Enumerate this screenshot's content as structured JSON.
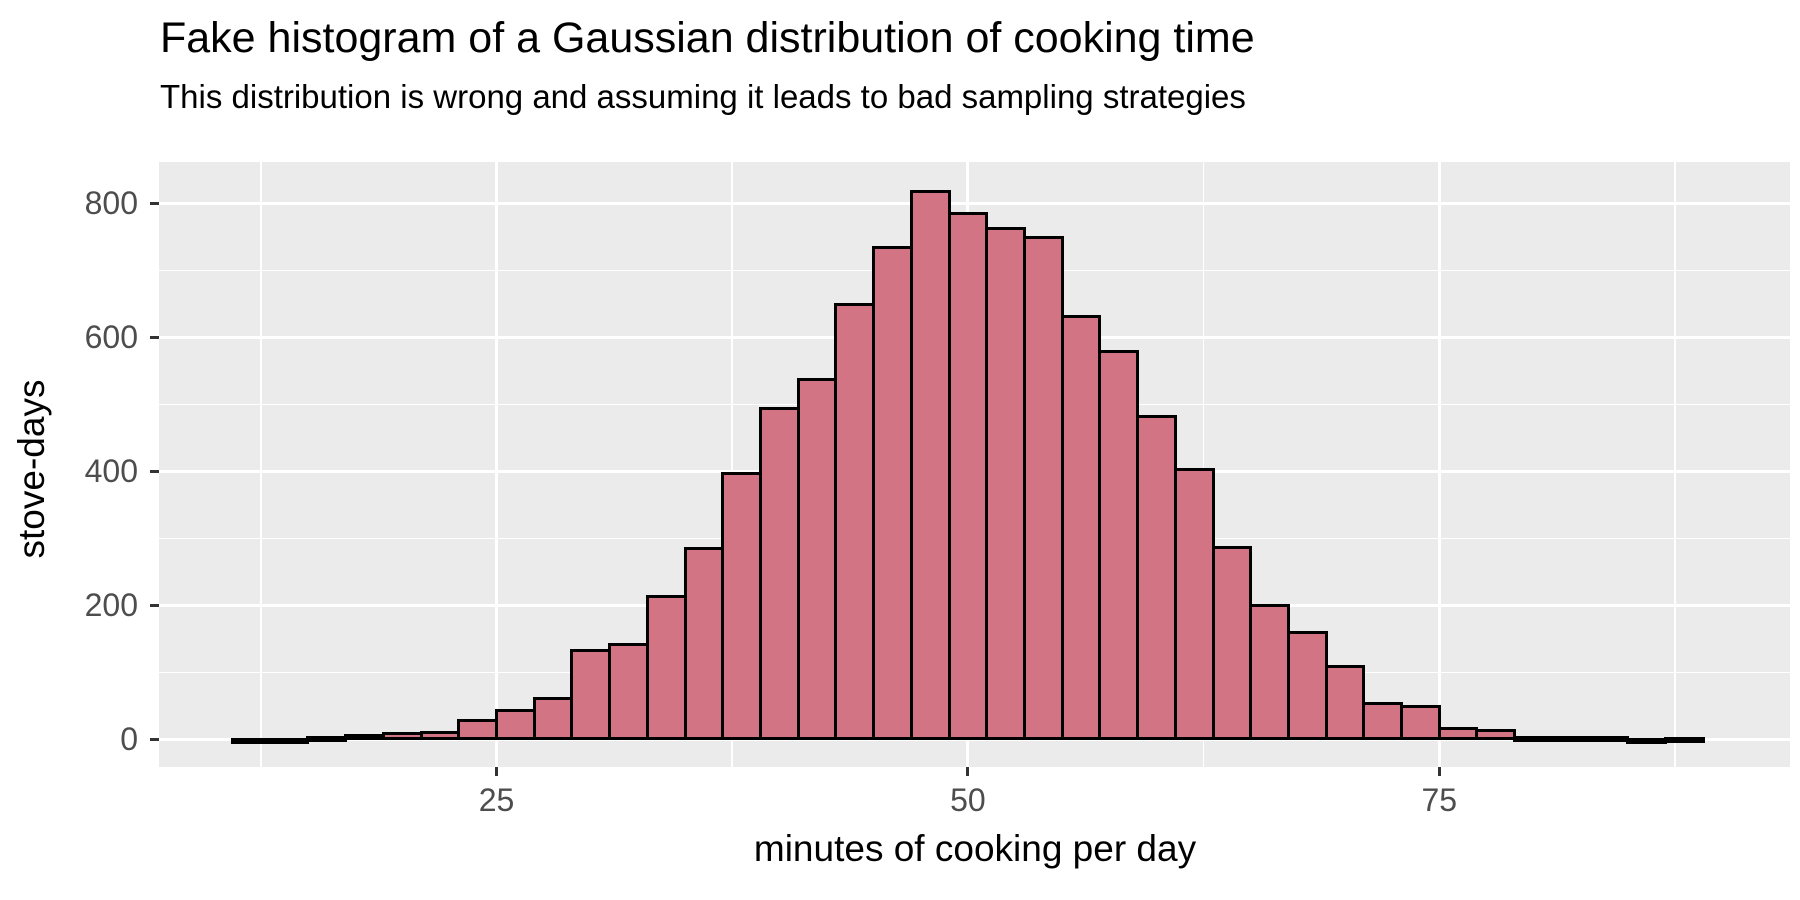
{
  "chart_data": {
    "type": "bar",
    "subtype": "histogram",
    "title": "Fake histogram of a Gaussian distribution of cooking time",
    "subtitle": "This distribution is wrong and assuming it leads to bad sampling strategies",
    "xlabel": "minutes of cooking per day",
    "ylabel": "stove-days",
    "bin_start": 11,
    "bin_width": 2,
    "bin_centers": [
      12,
      14,
      16,
      18,
      20,
      22,
      24,
      26,
      28,
      30,
      32,
      34,
      36,
      38,
      40,
      42,
      44,
      46,
      48,
      50,
      52,
      54,
      56,
      58,
      60,
      62,
      64,
      66,
      68,
      70,
      72,
      74,
      76,
      78,
      80,
      82,
      84,
      86,
      88
    ],
    "values": [
      2,
      2,
      6,
      8,
      11,
      12,
      30,
      46,
      64,
      135,
      144,
      215,
      287,
      400,
      497,
      540,
      652,
      737,
      820,
      788,
      765,
      751,
      634,
      581,
      484,
      405,
      289,
      202,
      162,
      111,
      56,
      51,
      19,
      16,
      5,
      6,
      5,
      2,
      4
    ],
    "x_ticks": [
      25,
      50,
      75
    ],
    "y_ticks": [
      0,
      200,
      400,
      600,
      800
    ],
    "x_minor_gridlines": [
      12.5,
      37.5,
      62.5,
      87.5
    ],
    "y_minor_gridlines": [
      100,
      300,
      500,
      700
    ],
    "xlim": [
      7.1,
      93.6
    ],
    "ylim": [
      -41,
      862
    ],
    "grid": true,
    "legend_position": "none",
    "colors": {
      "bar_fill": "#D37485",
      "bar_stroke": "#000000",
      "panel_background": "#EBEBEB",
      "gridline": "#FFFFFF",
      "tick_text": "#4D4D4D",
      "title_text": "#000000",
      "tick_mark": "#333333"
    }
  }
}
